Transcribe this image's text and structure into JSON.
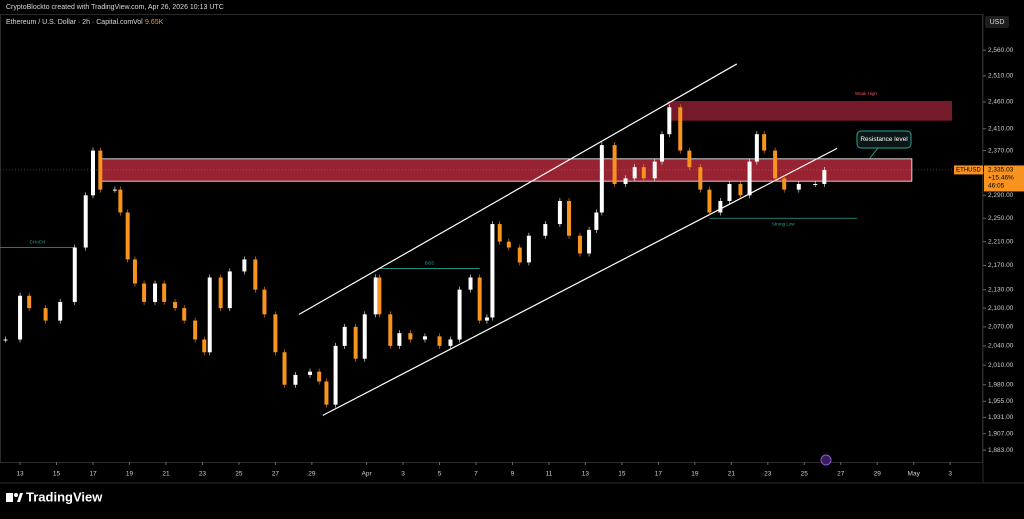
{
  "header": {
    "credit": "CryptoBlockto created with TradingView.com, Apr 26, 2026 10:13 UTC",
    "symbol": "Ethereum / U.S. Dollar · 2h · Capital.com",
    "volume_label": "Vol",
    "volume": "9.65K"
  },
  "footer": {
    "brand": "TradingView"
  },
  "chart_data": {
    "type": "candlestick",
    "currency": "USD",
    "log_scale": true,
    "grid": false,
    "x": [
      -0.8,
      0,
      0.5,
      1.4,
      2.2,
      3.0,
      3.6,
      4.0,
      4.4,
      5.2,
      5.5,
      5.9,
      6.3,
      6.8,
      7.4,
      7.9,
      8.5,
      9.0,
      9.6,
      10.1,
      10.4,
      11.0,
      11.5,
      12.3,
      12.9,
      13.4,
      14.0,
      14.5,
      15.1,
      15.9,
      16.4,
      16.8,
      17.3,
      17.8,
      18.4,
      18.9,
      19.5,
      19.7,
      20.3,
      20.8,
      21.4,
      22.2,
      23.0,
      23.6,
      24.1,
      24.7,
      25.2,
      25.6,
      25.9,
      26.3,
      26.8,
      27.4,
      27.9,
      28.8,
      29.6,
      30.1,
      30.7,
      31.2,
      31.6,
      31.9,
      32.6,
      33.2,
      33.7,
      34.2,
      34.8,
      35.2,
      35.6,
      36.2,
      36.7,
      37.3,
      37.8,
      38.4,
      38.9,
      39.5,
      40.0,
      40.4,
      40.8,
      41.4,
      41.9,
      42.7,
      43.6,
      44.1
    ],
    "series": [
      {
        "name": "ETHUSD",
        "up_color": "#ffffff",
        "down_color": "#f7931e",
        "values": [
          2050,
          2120,
          2100,
          2080,
          2110,
          2200,
          2290,
          2370,
          2300,
          2300,
          2260,
          2180,
          2140,
          2110,
          2140,
          2110,
          2100,
          2080,
          2050,
          2030,
          2150,
          2100,
          2160,
          2180,
          2130,
          2090,
          2030,
          1980,
          1995,
          2000,
          1985,
          1950,
          2040,
          2070,
          2020,
          2090,
          2150,
          2090,
          2040,
          2060,
          2050,
          2055,
          2040,
          2050,
          2130,
          2150,
          2080,
          2085,
          2240,
          2210,
          2200,
          2175,
          2220,
          2240,
          2280,
          2220,
          2190,
          2230,
          2260,
          2380,
          2310,
          2320,
          2340,
          2320,
          2350,
          2400,
          2450,
          2370,
          2340,
          2300,
          2260,
          2280,
          2310,
          2290,
          2350,
          2400,
          2370,
          2320,
          2300,
          2310,
          2310,
          2335
        ]
      }
    ],
    "xlim": [
      -1.1,
      52.8
    ],
    "ylim": [
      1866,
      2632
    ],
    "xticks": [
      {
        "value": 0,
        "label": "13"
      },
      {
        "value": 2,
        "label": "15"
      },
      {
        "value": 4,
        "label": "17"
      },
      {
        "value": 6,
        "label": "19"
      },
      {
        "value": 8,
        "label": "21"
      },
      {
        "value": 10,
        "label": "23"
      },
      {
        "value": 12,
        "label": "25"
      },
      {
        "value": 14,
        "label": "27"
      },
      {
        "value": 16,
        "label": "29"
      },
      {
        "value": 19,
        "label": "Apr"
      },
      {
        "value": 21,
        "label": "3"
      },
      {
        "value": 23,
        "label": "5"
      },
      {
        "value": 25,
        "label": "7"
      },
      {
        "value": 27,
        "label": "9"
      },
      {
        "value": 29,
        "label": "11"
      },
      {
        "value": 31,
        "label": "13"
      },
      {
        "value": 33,
        "label": "15"
      },
      {
        "value": 35,
        "label": "17"
      },
      {
        "value": 37,
        "label": "19"
      },
      {
        "value": 39,
        "label": "21"
      },
      {
        "value": 41,
        "label": "23"
      },
      {
        "value": 43,
        "label": "25"
      },
      {
        "value": 45,
        "label": "27"
      },
      {
        "value": 47,
        "label": "29"
      },
      {
        "value": 49,
        "label": "May"
      },
      {
        "value": 51,
        "label": "3"
      }
    ],
    "yticks": [
      {
        "value": 2560,
        "label": "2,560.00"
      },
      {
        "value": 2510,
        "label": "2,510.00"
      },
      {
        "value": 2460,
        "label": "2,460.00"
      },
      {
        "value": 2410,
        "label": "2,410.00"
      },
      {
        "value": 2370,
        "label": "2,370.00"
      },
      {
        "value": 2330,
        "label": "2,330.00"
      },
      {
        "value": 2290,
        "label": "2,290.00"
      },
      {
        "value": 2250,
        "label": "2,250.00"
      },
      {
        "value": 2210,
        "label": "2,210.00"
      },
      {
        "value": 2170,
        "label": "2,170.00"
      },
      {
        "value": 2130,
        "label": "2,130.00"
      },
      {
        "value": 2100,
        "label": "2,100.00"
      },
      {
        "value": 2070,
        "label": "2,070.00"
      },
      {
        "value": 2040,
        "label": "2,040.00"
      },
      {
        "value": 2010,
        "label": "2,010.00"
      },
      {
        "value": 1980,
        "label": "1,980.00"
      },
      {
        "value": 1955,
        "label": "1,955.00"
      },
      {
        "value": 1931,
        "label": "1,931.00"
      },
      {
        "value": 1907,
        "label": "1,907.00"
      },
      {
        "value": 1883,
        "label": "1,883.00"
      }
    ],
    "last_price": {
      "symbol": "ETHUSD",
      "value": 2335.03,
      "label": "2,335.03",
      "change": "+15.46%",
      "countdown": "46:05",
      "color": "#f7931e"
    },
    "zones": [
      {
        "low": 2315,
        "high": 2355,
        "x": [
          4.4,
          48.9
        ],
        "color": "#b2283a"
      },
      {
        "low": 2425,
        "high": 2462,
        "x": [
          35.5,
          51.1
        ],
        "color": "#8a1f2f",
        "label": "Weak High"
      }
    ],
    "trendlines": [
      {
        "x": [
          15.3,
          39.3
        ],
        "y": [
          2090,
          2533
        ],
        "color": "#ffffff"
      },
      {
        "x": [
          16.6,
          44.8
        ],
        "y": [
          1934,
          2374
        ],
        "color": "#ffffff"
      }
    ],
    "levels": [
      {
        "y": 2250,
        "x": [
          37.8,
          45.9
        ],
        "label": "Strong Low",
        "color": "#26a69a"
      },
      {
        "y": 2200,
        "x": [
          -1.1,
          3.0
        ],
        "label": "CHoCH",
        "color": "#26a69a"
      },
      {
        "y": 2165,
        "x": [
          19.7,
          25.2
        ],
        "label": "BOS",
        "color": "#26a69a"
      }
    ],
    "annotation": "Resistance level"
  }
}
